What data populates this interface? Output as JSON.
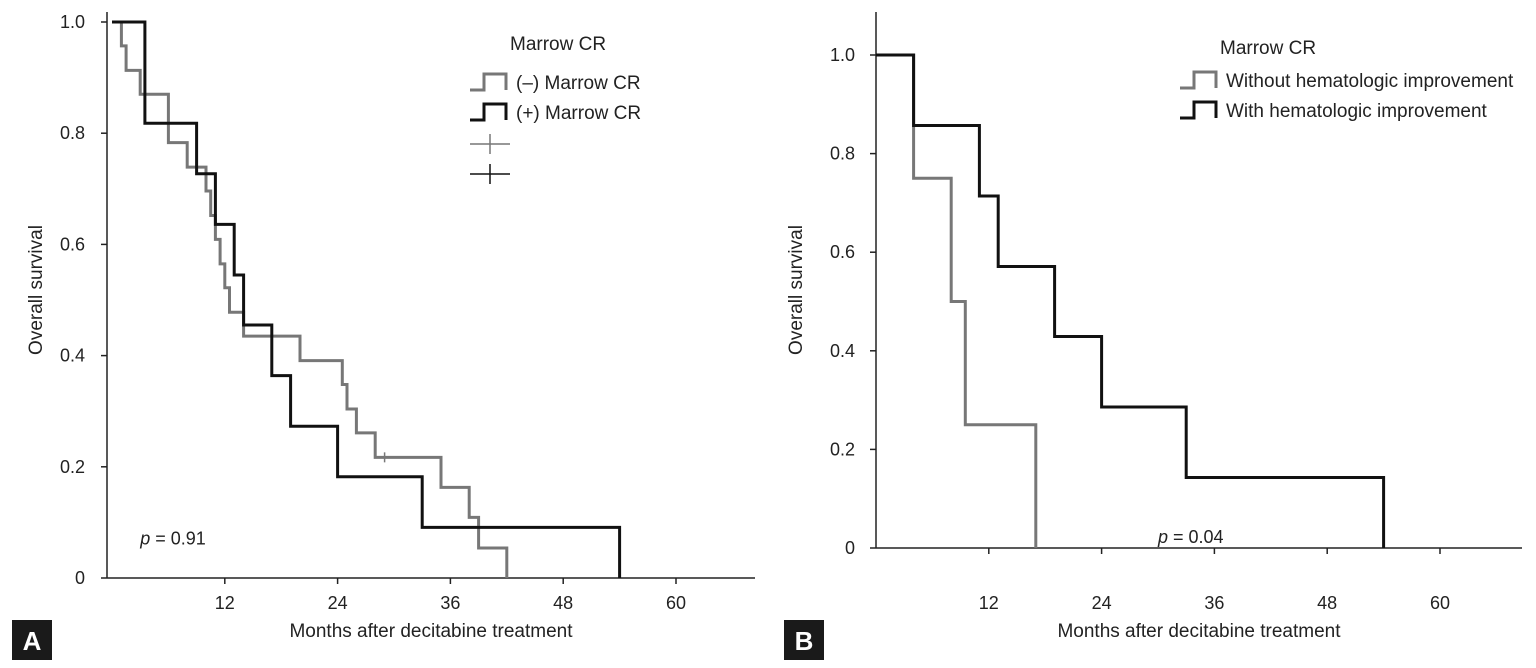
{
  "chart_data": [
    {
      "panel_label": "A",
      "type": "line",
      "subtype": "kaplan-meier",
      "xlabel": "Months after decitabine treatment",
      "ylabel": "Overall survival",
      "xlim": [
        0,
        70
      ],
      "ylim": [
        0,
        1.0
      ],
      "xticks": [
        12,
        24,
        36,
        48,
        60
      ],
      "yticks": [
        0,
        0.2,
        0.4,
        0.6,
        0.8,
        1.0
      ],
      "ytick_labels": [
        "0",
        "0.2",
        "0.4",
        "0.6",
        "0.8",
        "1.0"
      ],
      "legend": {
        "title": "Marrow CR",
        "position": "top-right",
        "censor_marks": [
          {
            "color": "#777777"
          },
          {
            "color": "#111111"
          }
        ]
      },
      "annotation": {
        "p_label": "p",
        "p_value": "= 0.91",
        "x": 3,
        "y": 0.06
      },
      "series": [
        {
          "name": "(–) Marrow CR",
          "color": "#777777",
          "x": [
            0,
            1,
            1.5,
            3,
            4,
            6,
            8,
            10,
            10.5,
            11,
            11.5,
            12,
            12.5,
            14,
            17,
            20,
            24,
            24.5,
            25,
            26,
            28,
            29,
            35,
            38,
            38.5,
            39,
            42
          ],
          "y": [
            1.0,
            0.957,
            0.913,
            0.87,
            0.87,
            0.783,
            0.739,
            0.696,
            0.652,
            0.609,
            0.565,
            0.522,
            0.478,
            0.435,
            0.435,
            0.391,
            0.391,
            0.348,
            0.304,
            0.261,
            0.217,
            0.217,
            0.163,
            0.109,
            0.109,
            0.054,
            0.0
          ],
          "censored": [
            {
              "x": 29,
              "y": 0.217
            }
          ]
        },
        {
          "name": "(+) Marrow CR",
          "color": "#111111",
          "x": [
            0,
            3,
            3.5,
            9,
            11,
            13,
            14,
            17,
            19,
            24,
            33,
            54
          ],
          "y": [
            1.0,
            1.0,
            0.818,
            0.727,
            0.636,
            0.545,
            0.455,
            0.364,
            0.273,
            0.182,
            0.091,
            0.0
          ],
          "censored": []
        }
      ]
    },
    {
      "panel_label": "B",
      "type": "line",
      "subtype": "kaplan-meier",
      "xlabel": "Months after decitabine treatment",
      "ylabel": "Overall survival",
      "xlim": [
        0,
        70
      ],
      "ylim": [
        0,
        1.0
      ],
      "xticks": [
        12,
        24,
        36,
        48,
        60
      ],
      "yticks": [
        0,
        0.2,
        0.4,
        0.6,
        0.8,
        1.0
      ],
      "ytick_labels": [
        "0",
        "0.2",
        "0.4",
        "0.6",
        "0.8",
        "1.0"
      ],
      "legend": {
        "title": "Marrow CR",
        "position": "top-right",
        "censor_marks": []
      },
      "annotation": {
        "p_label": "p",
        "p_value": "= 0.04",
        "x": 30,
        "y": 0.01
      },
      "series": [
        {
          "name": "Without hematologic improvement",
          "color": "#777777",
          "x": [
            0,
            4,
            8,
            9.5,
            17
          ],
          "y": [
            1.0,
            0.75,
            0.5,
            0.25,
            0.0
          ],
          "censored": []
        },
        {
          "name": "With hematologic improvement",
          "color": "#111111",
          "x": [
            0,
            4,
            11,
            13,
            19,
            24,
            33,
            54
          ],
          "y": [
            1.0,
            0.857,
            0.714,
            0.571,
            0.429,
            0.286,
            0.143,
            0.0
          ],
          "censored": []
        }
      ]
    }
  ]
}
